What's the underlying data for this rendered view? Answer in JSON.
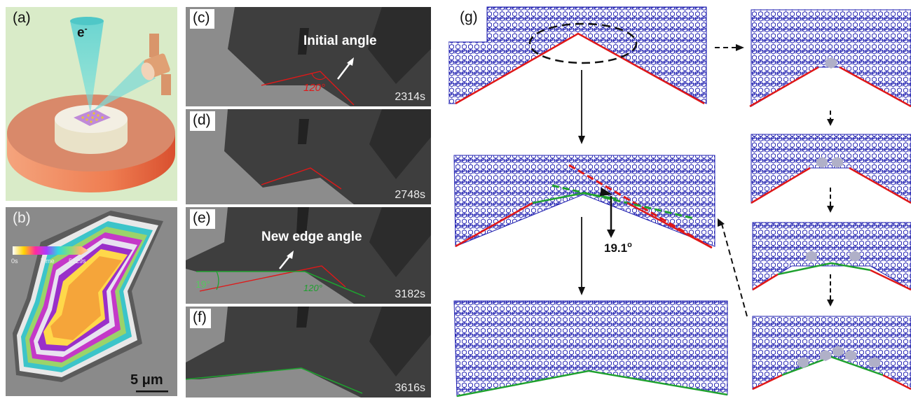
{
  "panel_a": {
    "label": "(a)",
    "beam_label": "e",
    "beam_sup": "-"
  },
  "panel_b": {
    "label": "(b)",
    "colorbar_start": "0s",
    "colorbar_mid": "Time",
    "colorbar_end": "5229s",
    "scale_bar": "5 μm"
  },
  "panel_c": {
    "label": "(c)",
    "annotation": "Initial angle",
    "angle": "120°",
    "time": "2314s"
  },
  "panel_d": {
    "label": "(d)",
    "time": "2748s"
  },
  "panel_e": {
    "label": "(e)",
    "annotation": "New edge angle",
    "angle_left": "19°",
    "angle_right": "120°",
    "time": "3182s"
  },
  "panel_f": {
    "label": "(f)",
    "time": "3616s"
  },
  "panel_g": {
    "label": "(g)",
    "angle": "19.1",
    "angle_unit": "o"
  },
  "colors": {
    "lattice": "#1f1fb0",
    "red_edge": "#e01818",
    "green_edge": "#1fa12f",
    "panel_a_bg": "#d9ebc8",
    "panel_b_bg": "#8a8a8a"
  }
}
